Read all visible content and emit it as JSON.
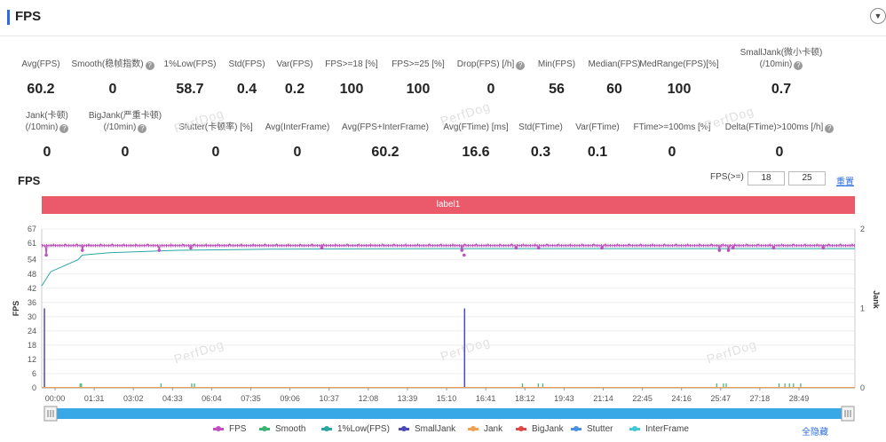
{
  "header": {
    "title": "FPS",
    "collapse_icon": "chevron-down-icon"
  },
  "stats_row1": [
    {
      "label": "Avg(FPS)",
      "value": "60.2",
      "help": false
    },
    {
      "label": "Smooth(稳帧指数)",
      "value": "0",
      "help": true
    },
    {
      "label": "1%Low(FPS)",
      "value": "58.7",
      "help": false
    },
    {
      "label": "Std(FPS)",
      "value": "0.4",
      "help": false
    },
    {
      "label": "Var(FPS)",
      "value": "0.2",
      "help": false
    },
    {
      "label": "FPS>=18 [%]",
      "value": "100",
      "help": false
    },
    {
      "label": "FPS>=25 [%]",
      "value": "100",
      "help": false
    },
    {
      "label": "Drop(FPS) [/h]",
      "value": "0",
      "help": true
    },
    {
      "label": "Min(FPS)",
      "value": "56",
      "help": false
    },
    {
      "label": "Median(FPS)",
      "value": "60",
      "help": false
    },
    {
      "label": "MedRange(FPS)[%]",
      "value": "100",
      "help": false
    },
    {
      "label": "SmallJank(微小卡顿)",
      "label2": "(/10min)",
      "value": "0.7",
      "help": true
    }
  ],
  "stats_row2": [
    {
      "label": "Jank(卡顿)",
      "label2": "(/10min)",
      "value": "0",
      "help": true
    },
    {
      "label": "BigJank(严重卡顿)",
      "label2": "(/10min)",
      "value": "0",
      "help": true
    },
    {
      "label": "Stutter(卡顿率) [%]",
      "value": "0",
      "help": false
    },
    {
      "label": "Avg(InterFrame)",
      "value": "0",
      "help": false
    },
    {
      "label": "Avg(FPS+InterFrame)",
      "value": "60.2",
      "help": false
    },
    {
      "label": "Avg(FTime) [ms]",
      "value": "16.6",
      "help": false
    },
    {
      "label": "Std(FTime)",
      "value": "0.3",
      "help": false
    },
    {
      "label": "Var(FTime)",
      "value": "0.1",
      "help": false
    },
    {
      "label": "FTime>=100ms [%]",
      "value": "0",
      "help": false
    },
    {
      "label": "Delta(FTime)>100ms [/h]",
      "value": "0",
      "help": true
    }
  ],
  "watermark": "PerfDog",
  "chart_title": "FPS",
  "fps_threshold": {
    "label": "FPS(>=)",
    "low": "18",
    "high": "25",
    "reset": "重置"
  },
  "segment_label": "label1",
  "legend": {
    "items": [
      "FPS",
      "Smooth",
      "1%Low(FPS)",
      "SmallJank",
      "Jank",
      "BigJank",
      "Stutter",
      "InterFrame"
    ],
    "clear_all": "全隐藏"
  },
  "colors": {
    "FPS": "#c050c0",
    "Smooth": "#3cb371",
    "1%Low(FPS)": "#2aa5a5",
    "SmallJank": "#4a4ab8",
    "Jank": "#f0a050",
    "BigJank": "#e04848",
    "Stutter": "#4a90e2",
    "InterFrame": "#40c8d8",
    "label_bar": "#ea5a6b",
    "scrollbar": "#39a8e6"
  },
  "chart_data": {
    "type": "line",
    "title": "FPS",
    "ylabel": "FPS",
    "y2label": "Jank",
    "ylim": [
      0,
      67
    ],
    "y2lim": [
      0,
      2
    ],
    "yticks": [
      0,
      6,
      12,
      18,
      24,
      30,
      36,
      42,
      48,
      54,
      61,
      67
    ],
    "y2ticks": [
      0,
      1,
      2
    ],
    "xticks": [
      "00:00",
      "01:31",
      "03:02",
      "04:33",
      "06:04",
      "07:35",
      "09:06",
      "10:37",
      "12:08",
      "13:39",
      "15:10",
      "16:41",
      "18:12",
      "19:43",
      "21:14",
      "22:45",
      "24:16",
      "25:47",
      "27:18",
      "28:49"
    ],
    "xlim_seconds": [
      0,
      1800
    ],
    "fps_base": 60,
    "fps_dips": [
      [
        10,
        56
      ],
      [
        90,
        58
      ],
      [
        260,
        58
      ],
      [
        330,
        59
      ],
      [
        620,
        59
      ],
      [
        930,
        58
      ],
      [
        935,
        56
      ],
      [
        1050,
        59
      ],
      [
        1100,
        59
      ],
      [
        1240,
        59
      ],
      [
        1500,
        58
      ],
      [
        1520,
        58
      ],
      [
        1530,
        59
      ],
      [
        1620,
        59
      ],
      [
        1730,
        59
      ]
    ],
    "low1pct": [
      [
        0,
        43
      ],
      [
        20,
        49
      ],
      [
        80,
        54
      ],
      [
        90,
        56
      ],
      [
        150,
        57
      ],
      [
        300,
        58
      ],
      [
        500,
        58.5
      ],
      [
        900,
        58.7
      ],
      [
        1800,
        58.7
      ]
    ],
    "smalljank": [
      [
        6,
        1
      ],
      [
        936,
        1
      ]
    ],
    "smooth_ticks": [
      85,
      88,
      264,
      332,
      338,
      1064,
      1099,
      1109,
      1494,
      1509,
      1515,
      1632,
      1645,
      1655,
      1664,
      1680
    ],
    "series": [
      {
        "name": "FPS"
      },
      {
        "name": "Smooth"
      },
      {
        "name": "1%Low(FPS)"
      },
      {
        "name": "SmallJank"
      },
      {
        "name": "Jank"
      },
      {
        "name": "BigJank"
      },
      {
        "name": "Stutter"
      },
      {
        "name": "InterFrame"
      }
    ],
    "legend_position": "bottom"
  }
}
